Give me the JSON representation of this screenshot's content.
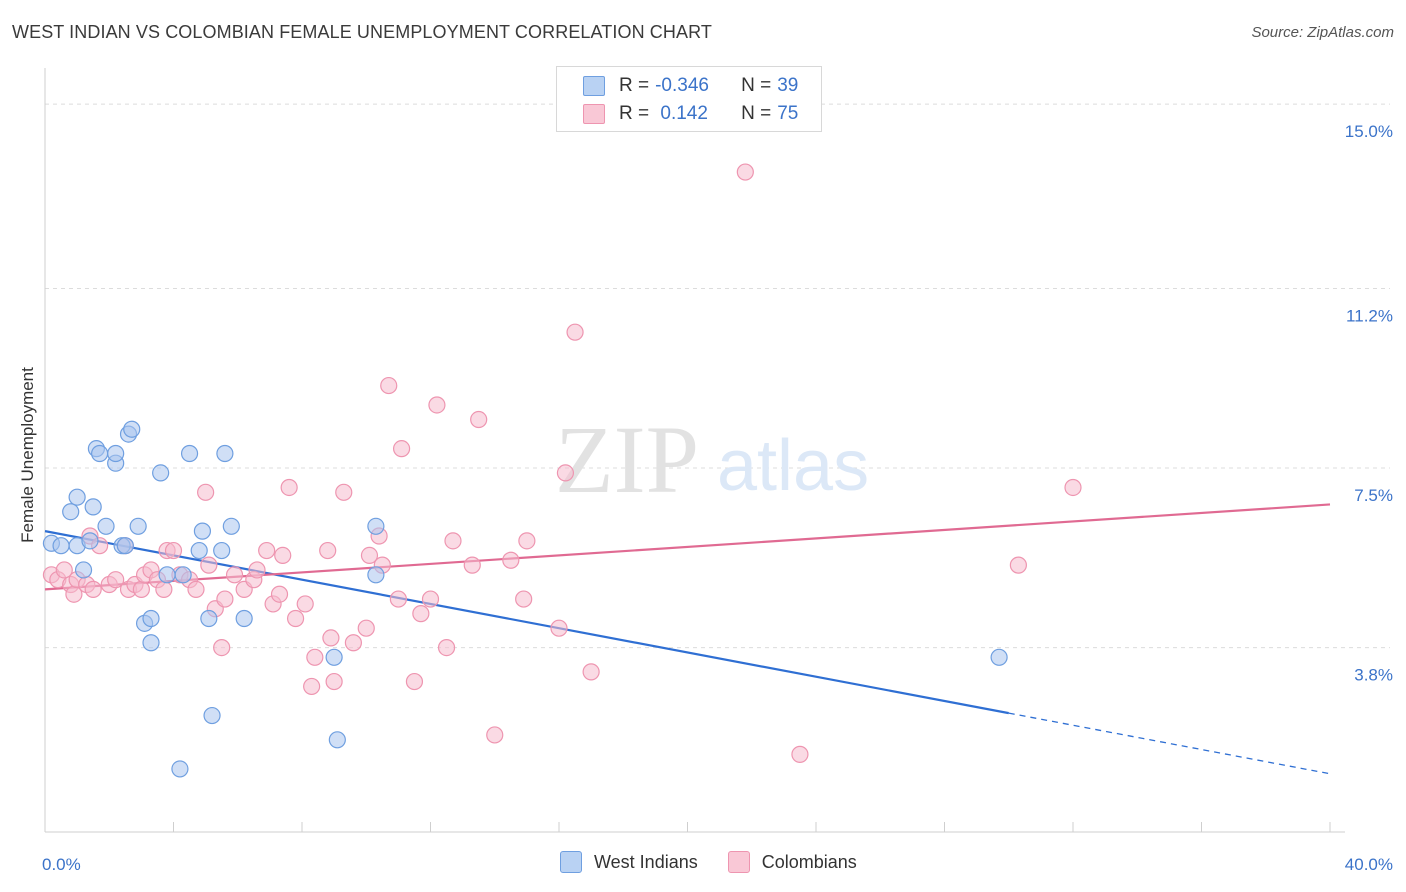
{
  "header": {
    "title": "WEST INDIAN VS COLOMBIAN FEMALE UNEMPLOYMENT CORRELATION CHART",
    "source": "Source: ZipAtlas.com"
  },
  "watermark": {
    "zip": "ZIP",
    "atlas": "atlas"
  },
  "legend": {
    "rows": [
      {
        "r_label": "R = ",
        "r_value": "-0.346",
        "n_label": "N = ",
        "n_value": "39"
      },
      {
        "r_label": "R = ",
        "r_value": " 0.142",
        "n_label": "N = ",
        "n_value": "75"
      }
    ]
  },
  "bottom_legend": {
    "series1": "West Indians",
    "series2": "Colombians"
  },
  "colors": {
    "blue_fill": "#a9c5ee",
    "blue_stroke": "#6f9fe0",
    "blue_line": "#2f6fd3",
    "pink_fill": "#f6bccd",
    "pink_stroke": "#ee95b0",
    "pink_line": "#e06a92",
    "axis_text": "#3b73c9",
    "grid": "#dcdcdc"
  },
  "chart_data": {
    "type": "scatter",
    "title": "WEST INDIAN VS COLOMBIAN FEMALE UNEMPLOYMENT CORRELATION CHART",
    "xlabel": "",
    "ylabel": "Female Unemployment",
    "xlim": [
      0,
      40
    ],
    "ylim": [
      0,
      15.6
    ],
    "x_tick_labels": [
      {
        "value": 0,
        "label": "0.0%"
      },
      {
        "value": 40,
        "label": "40.0%"
      }
    ],
    "y_tick_labels": [
      {
        "value": 3.8,
        "label": "3.8%"
      },
      {
        "value": 7.5,
        "label": "7.5%"
      },
      {
        "value": 11.2,
        "label": "11.2%"
      },
      {
        "value": 15.0,
        "label": "15.0%"
      }
    ],
    "grid": true,
    "series": [
      {
        "name": "West Indians",
        "r": -0.346,
        "n": 39,
        "trend": {
          "x_start": 0,
          "y_start": 6.2,
          "x_solid_end": 30.0,
          "y_solid_end": 2.45,
          "x_end": 40,
          "y_end": 1.2
        },
        "points": [
          [
            0.2,
            5.95
          ],
          [
            0.5,
            5.9
          ],
          [
            0.8,
            6.6
          ],
          [
            1.0,
            5.9
          ],
          [
            1.0,
            6.9
          ],
          [
            1.2,
            5.4
          ],
          [
            1.4,
            6.0
          ],
          [
            1.5,
            6.7
          ],
          [
            1.6,
            7.9
          ],
          [
            1.7,
            7.8
          ],
          [
            1.9,
            6.3
          ],
          [
            2.2,
            7.6
          ],
          [
            2.2,
            7.8
          ],
          [
            2.4,
            5.9
          ],
          [
            2.5,
            5.9
          ],
          [
            2.6,
            8.2
          ],
          [
            2.7,
            8.3
          ],
          [
            2.9,
            6.3
          ],
          [
            3.1,
            4.3
          ],
          [
            3.3,
            4.4
          ],
          [
            3.3,
            3.9
          ],
          [
            3.6,
            7.4
          ],
          [
            3.8,
            5.3
          ],
          [
            4.2,
            1.3
          ],
          [
            4.3,
            5.3
          ],
          [
            4.5,
            7.8
          ],
          [
            4.8,
            5.8
          ],
          [
            4.9,
            6.2
          ],
          [
            5.1,
            4.4
          ],
          [
            5.2,
            2.4
          ],
          [
            5.5,
            5.8
          ],
          [
            5.6,
            7.8
          ],
          [
            5.8,
            6.3
          ],
          [
            6.2,
            4.4
          ],
          [
            9.0,
            3.6
          ],
          [
            9.1,
            1.9
          ],
          [
            10.3,
            5.3
          ],
          [
            10.3,
            6.3
          ],
          [
            29.7,
            3.6
          ]
        ]
      },
      {
        "name": "Colombians",
        "r": 0.142,
        "n": 75,
        "trend": {
          "x_start": 0,
          "y_start": 5.0,
          "x_end": 40,
          "y_end": 6.75
        },
        "points": [
          [
            0.2,
            5.3
          ],
          [
            0.4,
            5.2
          ],
          [
            0.6,
            5.4
          ],
          [
            0.8,
            5.1
          ],
          [
            0.9,
            4.9
          ],
          [
            1.0,
            5.2
          ],
          [
            1.3,
            5.1
          ],
          [
            1.4,
            6.1
          ],
          [
            1.5,
            5.0
          ],
          [
            1.7,
            5.9
          ],
          [
            2.0,
            5.1
          ],
          [
            2.2,
            5.2
          ],
          [
            2.5,
            5.9
          ],
          [
            2.6,
            5.0
          ],
          [
            2.8,
            5.1
          ],
          [
            3.0,
            5.0
          ],
          [
            3.1,
            5.3
          ],
          [
            3.3,
            5.4
          ],
          [
            3.5,
            5.2
          ],
          [
            3.7,
            5.0
          ],
          [
            3.8,
            5.8
          ],
          [
            4.0,
            5.8
          ],
          [
            4.2,
            5.3
          ],
          [
            4.5,
            5.2
          ],
          [
            4.7,
            5.0
          ],
          [
            5.0,
            7.0
          ],
          [
            5.1,
            5.5
          ],
          [
            5.3,
            4.6
          ],
          [
            5.5,
            3.8
          ],
          [
            5.6,
            4.8
          ],
          [
            5.9,
            5.3
          ],
          [
            6.2,
            5.0
          ],
          [
            6.5,
            5.2
          ],
          [
            6.6,
            5.4
          ],
          [
            6.9,
            5.8
          ],
          [
            7.1,
            4.7
          ],
          [
            7.3,
            4.9
          ],
          [
            7.6,
            7.1
          ],
          [
            7.8,
            4.4
          ],
          [
            8.1,
            4.7
          ],
          [
            8.3,
            3.0
          ],
          [
            8.4,
            3.6
          ],
          [
            8.8,
            5.8
          ],
          [
            8.9,
            4.0
          ],
          [
            9.0,
            3.1
          ],
          [
            9.3,
            7.0
          ],
          [
            9.6,
            3.9
          ],
          [
            10.0,
            4.2
          ],
          [
            10.1,
            5.7
          ],
          [
            10.4,
            6.1
          ],
          [
            10.5,
            5.5
          ],
          [
            11.0,
            4.8
          ],
          [
            11.1,
            7.9
          ],
          [
            11.5,
            3.1
          ],
          [
            11.7,
            4.5
          ],
          [
            12.0,
            4.8
          ],
          [
            12.2,
            8.8
          ],
          [
            12.5,
            3.8
          ],
          [
            12.7,
            6.0
          ],
          [
            13.3,
            5.5
          ],
          [
            13.5,
            8.5
          ],
          [
            14.0,
            2.0
          ],
          [
            14.5,
            5.6
          ],
          [
            14.9,
            4.8
          ],
          [
            15.0,
            6.0
          ],
          [
            16.0,
            4.2
          ],
          [
            16.2,
            7.4
          ],
          [
            16.5,
            10.3
          ],
          [
            17.0,
            3.3
          ],
          [
            21.8,
            13.6
          ],
          [
            23.5,
            1.6
          ],
          [
            30.3,
            5.5
          ],
          [
            32.0,
            7.1
          ],
          [
            10.7,
            9.2
          ],
          [
            7.4,
            5.7
          ]
        ]
      }
    ]
  }
}
